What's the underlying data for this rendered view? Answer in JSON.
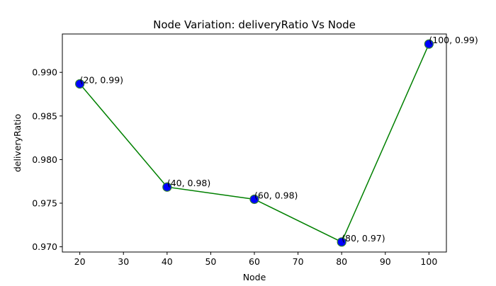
{
  "chart_data": {
    "type": "line",
    "title": "Node Variation: deliveryRatio Vs Node",
    "xlabel": "Node",
    "ylabel": "deliveryRatio",
    "x": [
      20,
      40,
      60,
      80,
      100
    ],
    "series": [
      {
        "values": [
          0.98868,
          0.97685,
          0.97545,
          0.97055,
          0.99325
        ],
        "point_labels": [
          "(20, 0.99)",
          "(40, 0.98)",
          "(60, 0.98)",
          "(80, 0.97)",
          "(100, 0.99)"
        ]
      }
    ],
    "xlim": [
      16,
      104
    ],
    "ylim": [
      0.9694,
      0.9944
    ],
    "xticks": [
      20,
      30,
      40,
      50,
      60,
      70,
      80,
      90,
      100
    ],
    "yticks": [
      0.97,
      0.975,
      0.98,
      0.985,
      0.99
    ],
    "ytick_labels": [
      "0.970",
      "0.975",
      "0.980",
      "0.985",
      "0.990"
    ],
    "grid": false,
    "legend": "none",
    "colors": {
      "line": "#008000",
      "marker_fill": "#0000ff",
      "marker_edge": "#2e7d32"
    }
  }
}
